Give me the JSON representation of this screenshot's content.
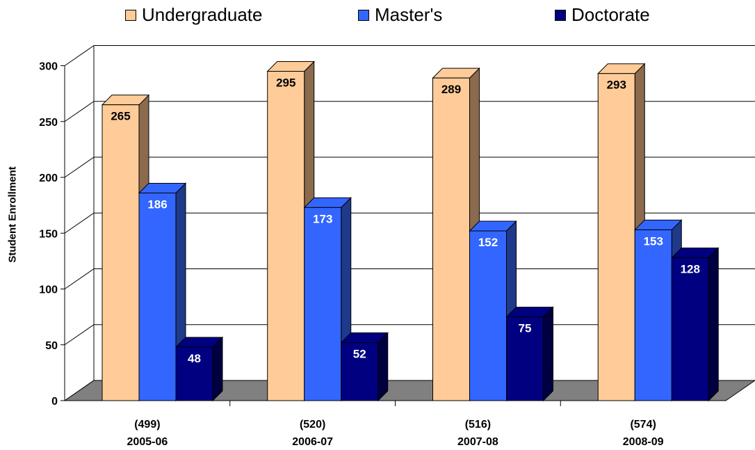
{
  "chart_data": {
    "type": "bar",
    "categories": [
      "2005-06",
      "2006-07",
      "2007-08",
      "2008-09"
    ],
    "category_totals": [
      "(499)",
      "(520)",
      "(516)",
      "(574)"
    ],
    "series": [
      {
        "name": "Undergraduate",
        "values": [
          265,
          295,
          289,
          293
        ],
        "color": "#FFCC99",
        "side_color": "#8B6A4E"
      },
      {
        "name": "Master's",
        "values": [
          186,
          173,
          152,
          153
        ],
        "color": "#3366FF",
        "side_color": "#1F3A8A"
      },
      {
        "name": "Doctorate",
        "values": [
          48,
          52,
          75,
          128
        ],
        "color": "#000080",
        "side_color": "#000040"
      }
    ],
    "title": "",
    "xlabel": "",
    "ylabel": "Student Enrollment",
    "ylim": [
      0,
      300
    ],
    "yticks": [
      0,
      50,
      100,
      150,
      200,
      250,
      300
    ],
    "grid": true,
    "legend_position": "top",
    "style": "3d-clustered-column",
    "floor_color": "#808080"
  }
}
